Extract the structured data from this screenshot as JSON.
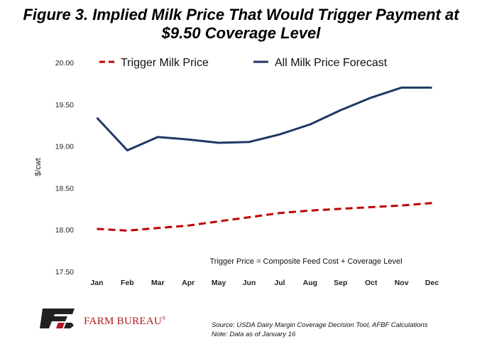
{
  "title_line1": "Figure 3. Implied Milk Price That Would Trigger Payment at",
  "title_line2": "$9.50 Coverage Level",
  "brand": {
    "name": "FARM BUREAU",
    "mark": "®"
  },
  "footnote": {
    "source": "Source: USDA Dairy Margin Coverage Decision Tool, AFBF Calculations",
    "note": "Note: Data as of January 16"
  },
  "chart_data": {
    "type": "line",
    "categories": [
      "Jan",
      "Feb",
      "Mar",
      "Apr",
      "May",
      "Jun",
      "Jul",
      "Aug",
      "Sep",
      "Oct",
      "Nov",
      "Dec"
    ],
    "ylabel": "$/cwt",
    "ylim": [
      17.5,
      20.0
    ],
    "yticks": [
      "17.50",
      "18.00",
      "18.50",
      "19.00",
      "19.50",
      "20.00"
    ],
    "grid": false,
    "legend_position": "top",
    "annotation": "Trigger Price = Composite Feed Cost + Coverage Level",
    "series": [
      {
        "name": "Trigger Milk Price",
        "color": "#c00000",
        "style": "dashed",
        "values": [
          18.01,
          17.99,
          18.02,
          18.05,
          18.1,
          18.15,
          18.2,
          18.23,
          18.25,
          18.27,
          18.29,
          18.32
        ]
      },
      {
        "name": "All Milk Price Forecast",
        "color": "#1f3864",
        "style": "solid",
        "values": [
          19.34,
          18.95,
          19.11,
          19.08,
          19.04,
          19.05,
          19.14,
          19.26,
          19.43,
          19.58,
          19.7,
          19.7
        ]
      }
    ]
  }
}
